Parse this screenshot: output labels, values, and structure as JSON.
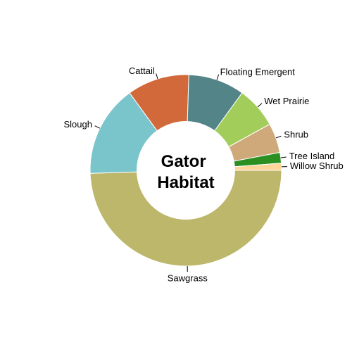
{
  "chart_data": {
    "type": "pie",
    "title": "Gator Habitat",
    "title_lines": [
      "Gator",
      "Habitat"
    ],
    "donut": true,
    "legend": "none",
    "grid": false,
    "slices": [
      {
        "label": "Sawgrass",
        "value": 49.5,
        "color": "#bdb76b"
      },
      {
        "label": "Slough",
        "value": 15.5,
        "color": "#7ac4cc"
      },
      {
        "label": "Cattail",
        "value": 10.5,
        "color": "#d2693a"
      },
      {
        "label": "Floating Emergent",
        "value": 9.5,
        "color": "#528488"
      },
      {
        "label": "Wet Prairie",
        "value": 7.0,
        "color": "#a3cd5a"
      },
      {
        "label": "Shrub",
        "value": 5.0,
        "color": "#cfa97a"
      },
      {
        "label": "Tree Island",
        "value": 1.8,
        "color": "#2b8f22"
      },
      {
        "label": "Willow Shrub",
        "value": 1.2,
        "color": "#ffd699"
      }
    ]
  }
}
